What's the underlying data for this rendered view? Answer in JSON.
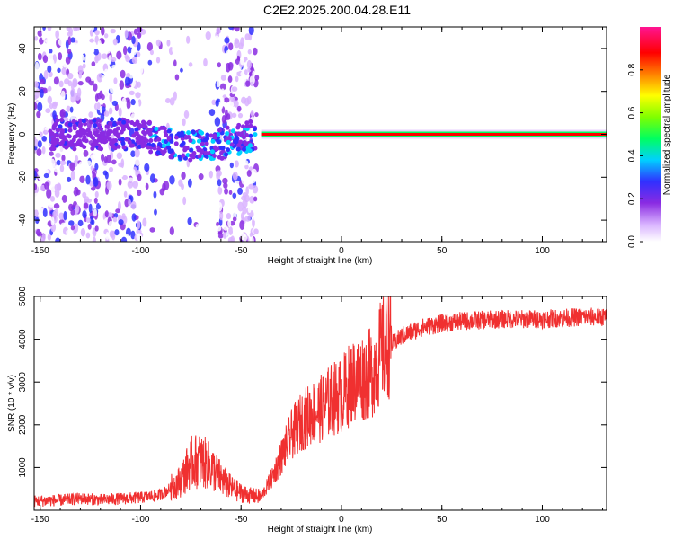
{
  "title": "C2E2.2025.200.04.28.E11",
  "colors": {
    "snr_line": "#f03030",
    "axis": "#000000"
  },
  "chart_data": [
    {
      "type": "heatmap",
      "xlabel": "Height of straight line (km)",
      "ylabel": "Frequency (Hz)",
      "xlim": [
        -153,
        132
      ],
      "ylim": [
        -50,
        50
      ],
      "x_ticks": [
        -150,
        -100,
        -50,
        0,
        50,
        100
      ],
      "x_tick_labels": [
        "-150",
        "-100",
        "-50",
        "0",
        "50",
        "100"
      ],
      "y_ticks": [
        -40,
        -20,
        0,
        20,
        40
      ],
      "y_tick_labels": [
        "-40",
        "-20",
        "0",
        "20",
        "40"
      ],
      "colormap": "rainbow (white-violet-blue-cyan-green-yellow-red-magenta)",
      "colorbar": {
        "label": "Normalized spectral amplitude",
        "range": [
          0,
          1
        ],
        "ticks": [
          0.0,
          0.2,
          0.4,
          0.6,
          0.8
        ],
        "tick_labels": [
          "0.0",
          "0.2",
          "0.4",
          "0.6",
          "0.8"
        ]
      },
      "features": [
        {
          "region": "noisy scatter",
          "x_range": [
            -153,
            -42
          ],
          "freq_range": [
            -50,
            50
          ],
          "amplitude": [
            0.05,
            0.35
          ]
        },
        {
          "region": "central blob",
          "x_range": [
            -100,
            -42
          ],
          "freq_center": [
            0,
            -6
          ],
          "amplitude": [
            0.2,
            0.4
          ]
        },
        {
          "region": "steady carrier",
          "x_range": [
            -40,
            132
          ],
          "freq_center": 0,
          "amplitude": [
            0.8,
            0.9
          ]
        }
      ]
    },
    {
      "type": "line",
      "xlabel": "Height of straight line (km)",
      "ylabel": "SNR (10 * v/v)",
      "xlim": [
        -153,
        132
      ],
      "ylim": [
        0,
        5000
      ],
      "x_ticks": [
        -150,
        -100,
        -50,
        0,
        50,
        100
      ],
      "x_tick_labels": [
        "-150",
        "-100",
        "-50",
        "0",
        "50",
        "100"
      ],
      "y_ticks": [
        1000,
        2000,
        3000,
        4000,
        5000
      ],
      "y_tick_labels": [
        "1000",
        "2000",
        "3000",
        "4000",
        "5000"
      ],
      "series": [
        {
          "x": [
            -153,
            -140,
            -130,
            -120,
            -100,
            -90,
            -80,
            -75,
            -70,
            -65,
            -60,
            -55,
            -50,
            -45,
            -40,
            -35,
            -30,
            -25,
            -20,
            -15,
            -10,
            -5,
            0,
            5,
            10,
            15,
            20,
            25,
            30,
            40,
            50,
            60,
            80,
            100,
            120,
            132
          ],
          "values": [
            200,
            220,
            260,
            230,
            280,
            350,
            650,
            1050,
            1100,
            950,
            700,
            500,
            380,
            320,
            300,
            700,
            1200,
            1700,
            2000,
            2200,
            2300,
            2500,
            2600,
            2900,
            3000,
            3100,
            3600,
            3850,
            4050,
            4250,
            4350,
            4400,
            4450,
            4450,
            4500,
            4500
          ]
        }
      ]
    }
  ]
}
